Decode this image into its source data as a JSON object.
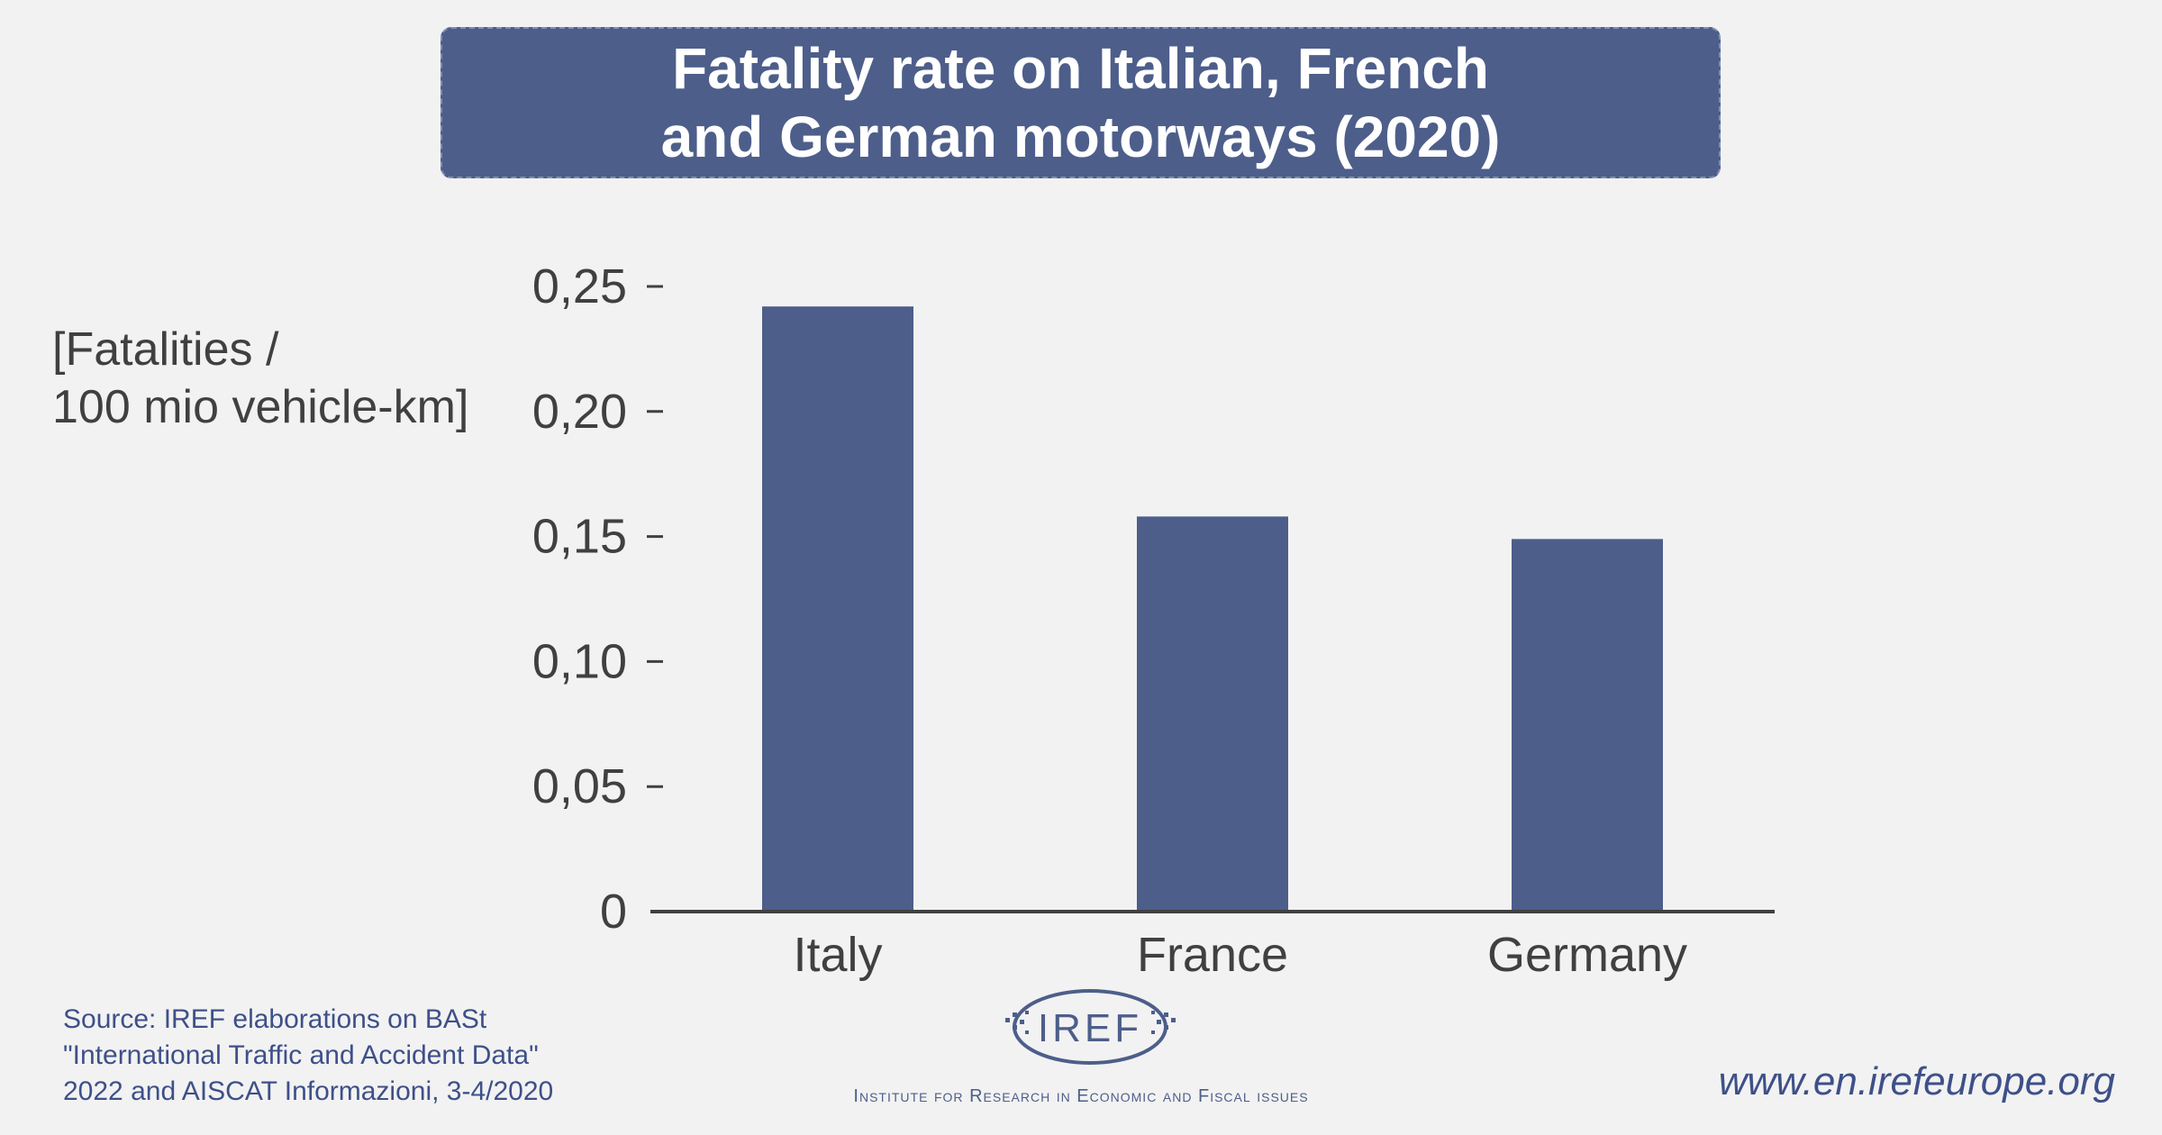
{
  "chart_data": {
    "type": "bar",
    "title_lines": [
      "Fatality rate on Italian, French",
      "and German motorways (2020)"
    ],
    "ylabel_lines": [
      "[Fatalities /",
      "100 mio vehicle-km]"
    ],
    "categories": [
      "Italy",
      "France",
      "Germany"
    ],
    "values": [
      0.242,
      0.158,
      0.149
    ],
    "ylim": [
      0,
      0.25
    ],
    "yticks": [
      0,
      0.05,
      0.1,
      0.15,
      0.2,
      0.25
    ],
    "ytick_labels": [
      "0",
      "0,05",
      "0,10",
      "0,15",
      "0,20",
      "0,25"
    ],
    "bar_color": "#4d5e8a",
    "grid": false
  },
  "footer": {
    "source_lines": [
      "Source: IREF elaborations on BASt",
      "\"International Traffic and Accident Data\"",
      "2022 and AISCAT Informazioni, 3-4/2020"
    ],
    "logo_text": "IREF",
    "logo_tagline": "Institute for Research in Economic and Fiscal issues",
    "website": "www.en.irefeurope.org"
  }
}
